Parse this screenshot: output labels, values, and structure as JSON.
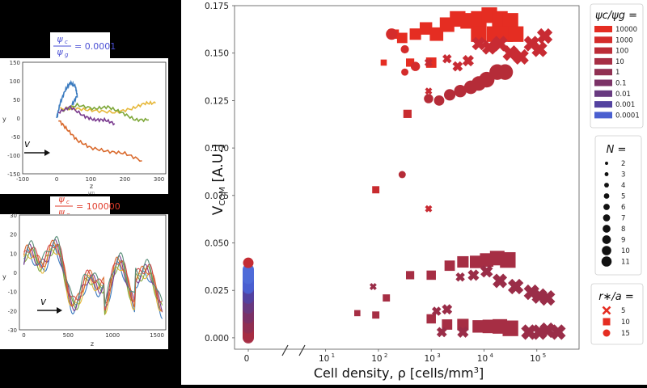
{
  "insets": [
    {
      "heading_parts": [
        "ψ",
        "c",
        "ψ",
        "g",
        "= 0.0001"
      ],
      "heading_color": "#4a4fd4",
      "yticks": [
        "150",
        "100",
        "50",
        "0",
        "-50",
        "-100",
        "-150"
      ],
      "xticks": [
        "-100",
        "0",
        "100",
        "200",
        "300"
      ],
      "ylabel": "y",
      "xlabel": "z",
      "x_unit": "μm",
      "v_label": "v",
      "tracks": [
        {
          "color": "#3b7bbf",
          "pts": [
            [
              0,
              0
            ],
            [
              10,
              40
            ],
            [
              25,
              75
            ],
            [
              40,
              95
            ],
            [
              55,
              85
            ],
            [
              60,
              60
            ],
            [
              45,
              35
            ]
          ]
        },
        {
          "color": "#e6b83b",
          "pts": [
            [
              10,
              25
            ],
            [
              60,
              25
            ],
            [
              110,
              20
            ],
            [
              170,
              15
            ],
            [
              220,
              25
            ],
            [
              260,
              40
            ],
            [
              290,
              40
            ]
          ]
        },
        {
          "color": "#7ea83a",
          "pts": [
            [
              15,
              20
            ],
            [
              60,
              35
            ],
            [
              110,
              25
            ],
            [
              150,
              30
            ],
            [
              190,
              15
            ],
            [
              230,
              -5
            ],
            [
              270,
              -5
            ]
          ]
        },
        {
          "color": "#7a3b8f",
          "pts": [
            [
              5,
              15
            ],
            [
              40,
              30
            ],
            [
              80,
              5
            ],
            [
              110,
              -5
            ],
            [
              140,
              -5
            ],
            [
              170,
              -15
            ]
          ]
        },
        {
          "color": "#d9692c",
          "pts": [
            [
              5,
              -5
            ],
            [
              30,
              -30
            ],
            [
              60,
              -60
            ],
            [
              100,
              -80
            ],
            [
              150,
              -90
            ],
            [
              200,
              -95
            ],
            [
              250,
              -115
            ]
          ]
        }
      ]
    },
    {
      "heading_parts": [
        "ψ",
        "c",
        "ψ",
        "g",
        "= 100000"
      ],
      "heading_color": "#e03c2b",
      "yticks": [
        "30",
        "20",
        "10",
        "0",
        "-10",
        "-20",
        "-30"
      ],
      "xticks": [
        "0",
        "500",
        "1000",
        "1500"
      ],
      "ylabel": "y",
      "xlabel": "z",
      "v_label": "v"
    }
  ],
  "chart_data": {
    "type": "scatter",
    "ylabel_main": "V",
    "ylabel_sub": "COM",
    "ylabel_unit": "[A.U.]",
    "xlabel": "Cell density, ρ [cells/mm",
    "xlabel_sup": "3",
    "xlabel_end": "]",
    "ylim": [
      -0.006,
      0.175
    ],
    "xlog_range": [
      0.5,
      5.8
    ],
    "yticks": [
      0.0,
      0.025,
      0.05,
      0.075,
      0.1,
      0.125,
      0.15,
      0.175
    ],
    "ytick_labels": [
      "0.000",
      "0.025",
      "0.050",
      "0.075",
      "0.100",
      "0.125",
      "0.150",
      "0.175"
    ],
    "xtick_labels": [
      {
        "base": "0",
        "exp": ""
      },
      {
        "base": "10",
        "exp": "1"
      },
      {
        "base": "10",
        "exp": "2"
      },
      {
        "base": "10",
        "exp": "3"
      },
      {
        "base": "10",
        "exp": "4"
      },
      {
        "base": "10",
        "exp": "5"
      }
    ],
    "xtick_logs": [
      null,
      1,
      2,
      3,
      4,
      5
    ],
    "legend_ratio": {
      "title": "ψc/ψg =",
      "entries": [
        {
          "label": "10000",
          "color": "#e52d22"
        },
        {
          "label": "1000",
          "color": "#d42c2b"
        },
        {
          "label": "100",
          "color": "#bb2c37"
        },
        {
          "label": "10",
          "color": "#a62e44"
        },
        {
          "label": "1",
          "color": "#903052"
        },
        {
          "label": "0.1",
          "color": "#7b3266"
        },
        {
          "label": "0.01",
          "color": "#683a80"
        },
        {
          "label": "0.001",
          "color": "#5342a0"
        },
        {
          "label": "0.0001",
          "color": "#4a5fd0"
        }
      ]
    },
    "legend_N": {
      "title": "N =",
      "entries": [
        {
          "label": "2",
          "size": 2
        },
        {
          "label": "3",
          "size": 3
        },
        {
          "label": "4",
          "size": 4
        },
        {
          "label": "5",
          "size": 5
        },
        {
          "label": "6",
          "size": 6
        },
        {
          "label": "7",
          "size": 7
        },
        {
          "label": "8",
          "size": 8
        },
        {
          "label": "9",
          "size": 9
        },
        {
          "label": "10",
          "size": 10
        },
        {
          "label": "11",
          "size": 11
        }
      ]
    },
    "legend_shape": {
      "title": "r∗/a =",
      "entries": [
        {
          "label": "5",
          "shape": "x"
        },
        {
          "label": "10",
          "shape": "square"
        },
        {
          "label": "15",
          "shape": "circle"
        }
      ]
    },
    "series": [
      {
        "name": "r*/a=10 high",
        "color": "#e52d22",
        "shape": "square",
        "points": [
          [
            2.1,
            0.145,
            2
          ],
          [
            2.3,
            0.16,
            5
          ],
          [
            2.45,
            0.158,
            6
          ],
          [
            2.7,
            0.16,
            7
          ],
          [
            2.9,
            0.163,
            8
          ],
          [
            3.1,
            0.16,
            9
          ],
          [
            3.3,
            0.165,
            10
          ],
          [
            3.5,
            0.168,
            11
          ],
          [
            3.7,
            0.167,
            11
          ],
          [
            3.9,
            0.168,
            11
          ],
          [
            4.1,
            0.17,
            11
          ],
          [
            4.3,
            0.168,
            11
          ],
          [
            4.5,
            0.167,
            11
          ],
          [
            2.6,
            0.145,
            4
          ],
          [
            3.0,
            0.145,
            6
          ],
          [
            3.9,
            0.16,
            11
          ],
          [
            4.2,
            0.16,
            11
          ],
          [
            4.4,
            0.16,
            11
          ],
          [
            4.6,
            0.16,
            11
          ]
        ]
      },
      {
        "name": "r*/a=10 mid",
        "color": "#c82b2f",
        "shape": "square",
        "points": [
          [
            1.95,
            0.078,
            3
          ],
          [
            2.55,
            0.118,
            4
          ]
        ]
      },
      {
        "name": "r*/a=15 high",
        "color": "#d42c2b",
        "shape": "circle",
        "points": [
          [
            2.25,
            0.16,
            7
          ],
          [
            2.5,
            0.14,
            3
          ],
          [
            2.5,
            0.152,
            4
          ],
          [
            2.7,
            0.143,
            5
          ]
        ]
      },
      {
        "name": "r*/a=15 mid",
        "color": "#b52c38",
        "shape": "circle",
        "points": [
          [
            2.45,
            0.086,
            3
          ],
          [
            2.95,
            0.126,
            5
          ],
          [
            3.15,
            0.125,
            6
          ],
          [
            3.35,
            0.128,
            7
          ],
          [
            3.55,
            0.13,
            8
          ],
          [
            3.75,
            0.132,
            9
          ],
          [
            3.9,
            0.134,
            10
          ],
          [
            4.05,
            0.136,
            11
          ],
          [
            4.25,
            0.14,
            11
          ],
          [
            4.4,
            0.14,
            11
          ]
        ]
      },
      {
        "name": "r*/a=5 high",
        "color": "#c82b33",
        "shape": "x",
        "points": [
          [
            2.95,
            0.145,
            4
          ],
          [
            3.3,
            0.147,
            5
          ],
          [
            3.5,
            0.143,
            6
          ],
          [
            2.95,
            0.13,
            3
          ],
          [
            3.7,
            0.146,
            7
          ],
          [
            3.9,
            0.155,
            9
          ],
          [
            4.1,
            0.153,
            10
          ],
          [
            4.3,
            0.155,
            11
          ],
          [
            4.5,
            0.15,
            11
          ],
          [
            4.7,
            0.148,
            11
          ],
          [
            4.9,
            0.155,
            11
          ],
          [
            5.05,
            0.152,
            11
          ],
          [
            5.15,
            0.159,
            11
          ],
          [
            2.95,
            0.068,
            3
          ]
        ]
      },
      {
        "name": "r*/a=10 low",
        "color": "#a62e44",
        "shape": "square",
        "points": [
          [
            1.6,
            0.013,
            2
          ],
          [
            1.95,
            0.012,
            3
          ],
          [
            2.15,
            0.021,
            3
          ],
          [
            2.6,
            0.033,
            4
          ],
          [
            3.0,
            0.033,
            5
          ],
          [
            3.35,
            0.038,
            6
          ],
          [
            3.6,
            0.04,
            7
          ],
          [
            3.85,
            0.04,
            8
          ],
          [
            4.05,
            0.041,
            9
          ],
          [
            4.25,
            0.042,
            10
          ],
          [
            4.45,
            0.041,
            11
          ],
          [
            3.0,
            0.01,
            5
          ],
          [
            3.3,
            0.007,
            6
          ],
          [
            3.6,
            0.007,
            7
          ],
          [
            3.9,
            0.006,
            8
          ],
          [
            4.1,
            0.006,
            9
          ],
          [
            4.3,
            0.006,
            10
          ],
          [
            4.5,
            0.005,
            11
          ]
        ]
      },
      {
        "name": "r*/a=5 low",
        "color": "#9a2d48",
        "shape": "x",
        "points": [
          [
            1.9,
            0.027,
            3
          ],
          [
            3.1,
            0.014,
            5
          ],
          [
            3.3,
            0.015,
            6
          ],
          [
            3.55,
            0.032,
            5
          ],
          [
            3.8,
            0.033,
            7
          ],
          [
            4.05,
            0.035,
            8
          ],
          [
            4.3,
            0.03,
            10
          ],
          [
            4.6,
            0.027,
            11
          ],
          [
            4.9,
            0.024,
            11
          ],
          [
            5.05,
            0.022,
            11
          ],
          [
            5.2,
            0.021,
            11
          ],
          [
            4.85,
            0.003,
            11
          ],
          [
            5.05,
            0.003,
            11
          ],
          [
            5.2,
            0.004,
            11
          ],
          [
            5.4,
            0.003,
            11
          ],
          [
            3.2,
            0.003,
            6
          ],
          [
            3.6,
            0.003,
            7
          ]
        ]
      }
    ]
  }
}
